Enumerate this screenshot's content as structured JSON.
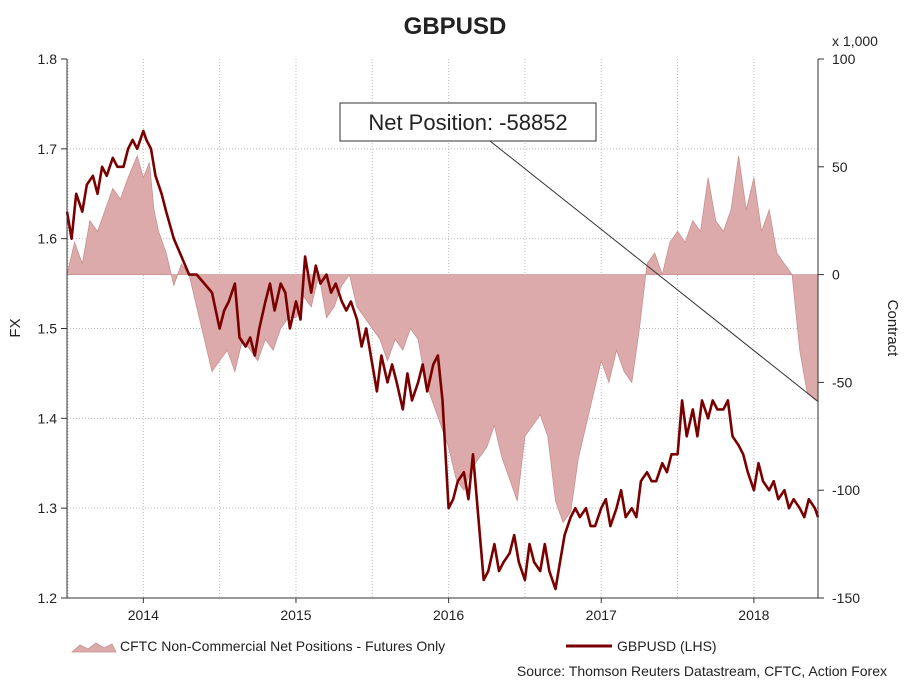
{
  "colors": {
    "background": "#ffffff",
    "fx_line": "#7a0000",
    "net_area_fill": "#dcaaaa",
    "net_area_stroke": "#c99090",
    "grid": "#bdbdbd"
  },
  "chart_data": {
    "type": "line",
    "title": "GBPUSD",
    "ylabel_left": "FX",
    "ylabel_right": "Contract",
    "right_axis_multiplier": "x 1,000",
    "x_ticks": [
      "2014",
      "2015",
      "2016",
      "2017",
      "2018"
    ],
    "x_range": [
      2013.5,
      2018.42
    ],
    "year_starts": [
      2014.0,
      2015.0,
      2016.0,
      2017.0,
      2018.0
    ],
    "left_axis": {
      "ylim": [
        1.2,
        1.8
      ],
      "ticks": [
        "1.8",
        "1.7",
        "1.6",
        "1.5",
        "1.4",
        "1.3",
        "1.2"
      ]
    },
    "right_axis": {
      "ylim": [
        -150,
        100
      ],
      "ticks": [
        "100",
        "50",
        "0",
        "-50",
        "-100",
        "-150"
      ]
    },
    "grid": true,
    "annotation": {
      "text": "Net Position: -58852",
      "points_to": {
        "x": 2018.42,
        "y": -58.852
      }
    },
    "legend": {
      "position": "bottom",
      "entries": [
        "CFTC Non-Commercial Net Positions - Futures Only",
        "GBPUSD (LHS)"
      ]
    },
    "source": "Source: Thomson Reuters Datastream, CFTC, Action Forex",
    "series": [
      {
        "name": "CFTC Non-Commercial Net Positions - Futures Only",
        "type": "area",
        "axis": "right",
        "x": [
          2013.5,
          2013.55,
          2013.6,
          2013.65,
          2013.7,
          2013.75,
          2013.8,
          2013.85,
          2013.9,
          2013.93,
          2013.96,
          2014.0,
          2014.04,
          2014.07,
          2014.1,
          2014.15,
          2014.2,
          2014.25,
          2014.3,
          2014.35,
          2014.4,
          2014.45,
          2014.5,
          2014.55,
          2014.6,
          2014.65,
          2014.7,
          2014.75,
          2014.8,
          2014.85,
          2014.9,
          2014.95,
          2015.0,
          2015.05,
          2015.1,
          2015.15,
          2015.2,
          2015.25,
          2015.3,
          2015.35,
          2015.4,
          2015.45,
          2015.5,
          2015.55,
          2015.6,
          2015.65,
          2015.7,
          2015.75,
          2015.8,
          2015.85,
          2015.9,
          2015.95,
          2016.0,
          2016.05,
          2016.1,
          2016.15,
          2016.2,
          2016.25,
          2016.3,
          2016.35,
          2016.4,
          2016.45,
          2016.5,
          2016.55,
          2016.6,
          2016.65,
          2016.7,
          2016.75,
          2016.8,
          2016.85,
          2016.9,
          2016.95,
          2017.0,
          2017.05,
          2017.1,
          2017.15,
          2017.2,
          2017.25,
          2017.3,
          2017.35,
          2017.4,
          2017.45,
          2017.5,
          2017.55,
          2017.6,
          2017.65,
          2017.7,
          2017.75,
          2017.8,
          2017.85,
          2017.9,
          2017.95,
          2018.0,
          2018.05,
          2018.1,
          2018.15,
          2018.2,
          2018.25,
          2018.3,
          2018.35,
          2018.4,
          2018.42
        ],
        "values": [
          0,
          15,
          5,
          25,
          20,
          30,
          40,
          35,
          45,
          50,
          55,
          45,
          52,
          30,
          20,
          10,
          -5,
          5,
          0,
          -15,
          -30,
          -45,
          -40,
          -35,
          -45,
          -30,
          -35,
          -40,
          -30,
          -35,
          -25,
          -20,
          -20,
          -10,
          -15,
          0,
          -20,
          -15,
          -5,
          0,
          -15,
          -20,
          -25,
          -30,
          -40,
          -30,
          -35,
          -25,
          -30,
          -50,
          -60,
          -70,
          -80,
          -95,
          -100,
          -90,
          -85,
          -80,
          -70,
          -85,
          -95,
          -105,
          -75,
          -70,
          -65,
          -75,
          -105,
          -115,
          -110,
          -85,
          -70,
          -55,
          -40,
          -50,
          -35,
          -45,
          -50,
          -25,
          5,
          10,
          0,
          15,
          20,
          15,
          25,
          20,
          45,
          25,
          20,
          30,
          55,
          30,
          45,
          20,
          30,
          10,
          5,
          0,
          -35,
          -55,
          -58,
          -58.852
        ]
      },
      {
        "name": "GBPUSD (LHS)",
        "type": "line",
        "axis": "left",
        "x": [
          2013.5,
          2013.53,
          2013.56,
          2013.6,
          2013.63,
          2013.67,
          2013.7,
          2013.73,
          2013.76,
          2013.8,
          2013.83,
          2013.87,
          2013.9,
          2013.93,
          2013.96,
          2014.0,
          2014.02,
          2014.05,
          2014.08,
          2014.12,
          2014.15,
          2014.2,
          2014.25,
          2014.3,
          2014.35,
          2014.4,
          2014.45,
          2014.5,
          2014.53,
          2014.56,
          2014.6,
          2014.63,
          2014.67,
          2014.7,
          2014.73,
          2014.76,
          2014.8,
          2014.83,
          2014.86,
          2014.9,
          2014.93,
          2014.96,
          2015.0,
          2015.03,
          2015.06,
          2015.1,
          2015.13,
          2015.16,
          2015.2,
          2015.23,
          2015.26,
          2015.3,
          2015.33,
          2015.36,
          2015.4,
          2015.43,
          2015.46,
          2015.5,
          2015.53,
          2015.56,
          2015.6,
          2015.63,
          2015.66,
          2015.7,
          2015.73,
          2015.76,
          2015.8,
          2015.83,
          2015.86,
          2015.9,
          2015.93,
          2015.96,
          2016.0,
          2016.03,
          2016.06,
          2016.1,
          2016.13,
          2016.16,
          2016.2,
          2016.23,
          2016.26,
          2016.3,
          2016.33,
          2016.36,
          2016.4,
          2016.43,
          2016.46,
          2016.5,
          2016.53,
          2016.56,
          2016.6,
          2016.63,
          2016.66,
          2016.7,
          2016.73,
          2016.76,
          2016.8,
          2016.83,
          2016.86,
          2016.9,
          2016.93,
          2016.96,
          2017.0,
          2017.03,
          2017.06,
          2017.1,
          2017.13,
          2017.16,
          2017.2,
          2017.23,
          2017.26,
          2017.3,
          2017.33,
          2017.36,
          2017.4,
          2017.43,
          2017.46,
          2017.5,
          2017.53,
          2017.56,
          2017.6,
          2017.63,
          2017.66,
          2017.7,
          2017.73,
          2017.76,
          2017.8,
          2017.83,
          2017.86,
          2017.9,
          2017.93,
          2017.96,
          2018.0,
          2018.03,
          2018.06,
          2018.1,
          2018.13,
          2018.16,
          2018.2,
          2018.23,
          2018.26,
          2018.3,
          2018.33,
          2018.36,
          2018.4,
          2018.42
        ],
        "values": [
          1.63,
          1.6,
          1.65,
          1.63,
          1.66,
          1.67,
          1.65,
          1.68,
          1.67,
          1.69,
          1.68,
          1.68,
          1.7,
          1.71,
          1.7,
          1.72,
          1.71,
          1.7,
          1.67,
          1.65,
          1.63,
          1.6,
          1.58,
          1.56,
          1.56,
          1.55,
          1.54,
          1.5,
          1.52,
          1.53,
          1.55,
          1.49,
          1.48,
          1.49,
          1.47,
          1.5,
          1.53,
          1.55,
          1.52,
          1.55,
          1.54,
          1.5,
          1.53,
          1.51,
          1.58,
          1.54,
          1.57,
          1.55,
          1.56,
          1.54,
          1.55,
          1.53,
          1.52,
          1.53,
          1.51,
          1.48,
          1.5,
          1.46,
          1.43,
          1.47,
          1.44,
          1.46,
          1.44,
          1.41,
          1.45,
          1.42,
          1.44,
          1.46,
          1.43,
          1.46,
          1.47,
          1.42,
          1.3,
          1.31,
          1.33,
          1.34,
          1.31,
          1.36,
          1.28,
          1.22,
          1.23,
          1.26,
          1.23,
          1.24,
          1.25,
          1.27,
          1.24,
          1.22,
          1.26,
          1.24,
          1.23,
          1.26,
          1.23,
          1.21,
          1.24,
          1.27,
          1.29,
          1.3,
          1.29,
          1.3,
          1.28,
          1.28,
          1.3,
          1.31,
          1.28,
          1.3,
          1.32,
          1.29,
          1.3,
          1.29,
          1.33,
          1.34,
          1.33,
          1.33,
          1.35,
          1.34,
          1.36,
          1.36,
          1.42,
          1.38,
          1.41,
          1.38,
          1.42,
          1.4,
          1.42,
          1.41,
          1.41,
          1.42,
          1.38,
          1.37,
          1.36,
          1.34,
          1.32,
          1.35,
          1.33,
          1.32,
          1.33,
          1.31,
          1.32,
          1.3,
          1.31,
          1.3,
          1.29,
          1.31,
          1.3,
          1.29
        ]
      }
    ]
  }
}
